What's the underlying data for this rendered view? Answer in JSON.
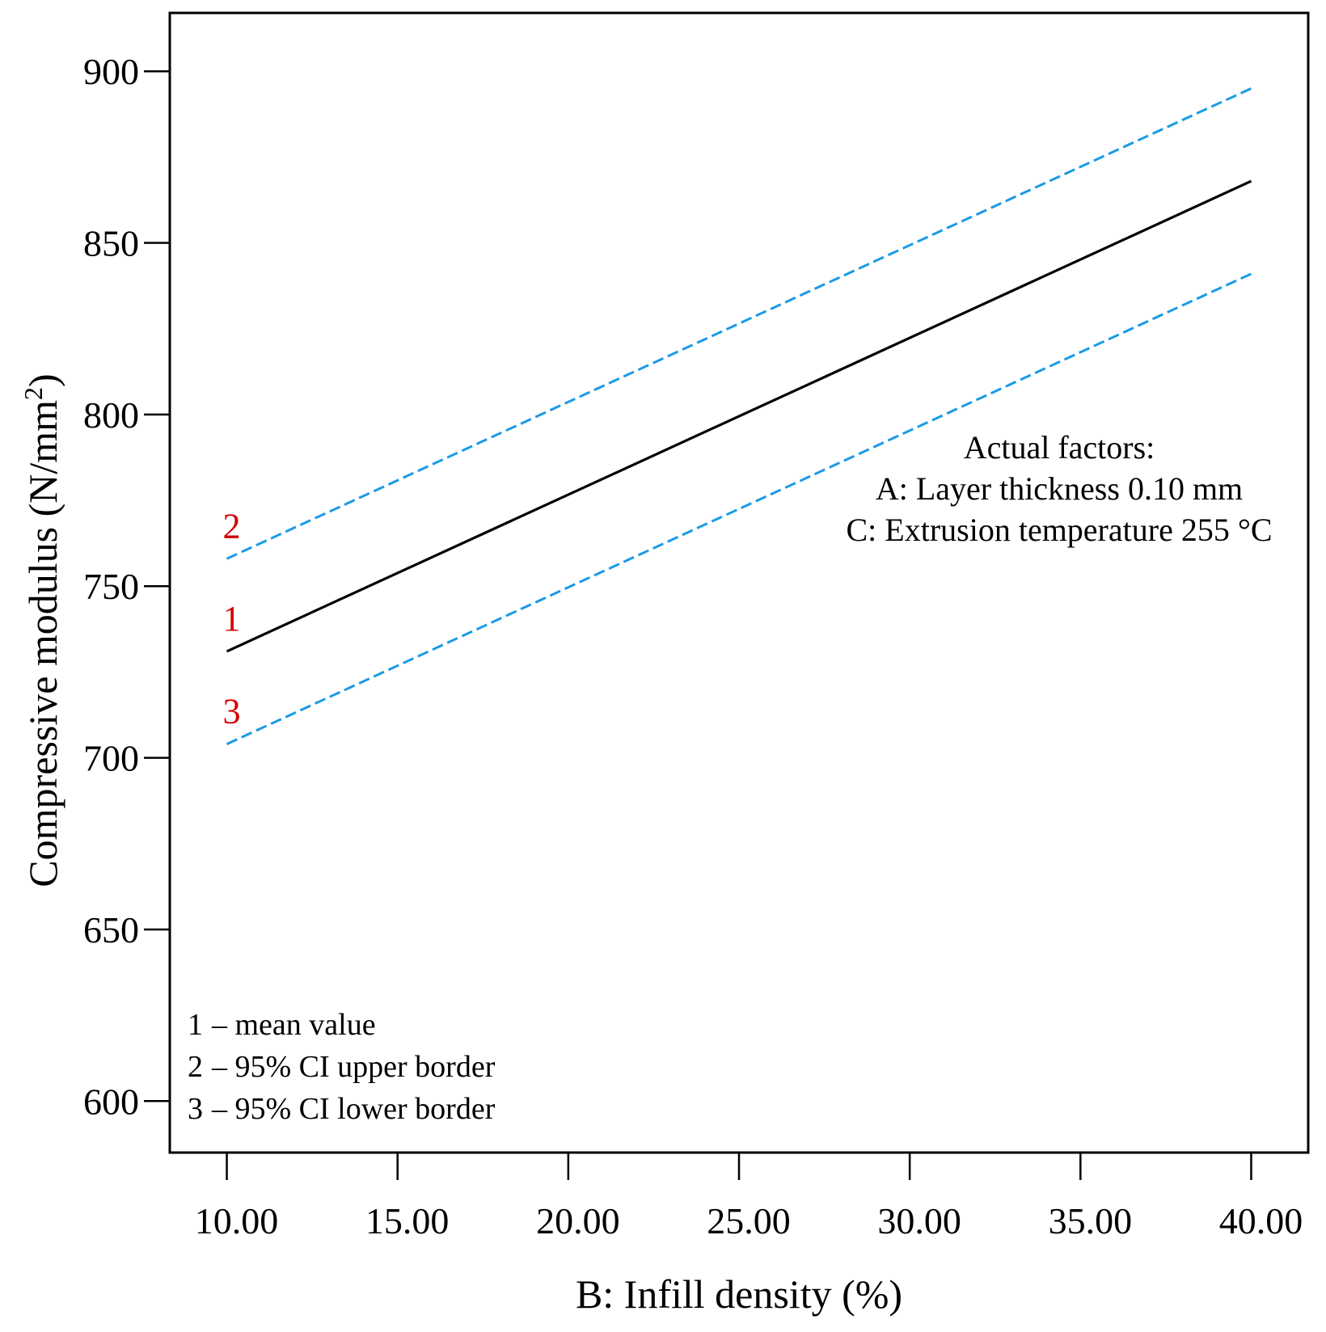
{
  "chart_data": {
    "type": "line",
    "title": "",
    "xlabel": "B: Infill density (%)",
    "ylabel": "Compressive modulus (N/mm",
    "ylabel_sup": "2",
    "ylabel_end": ")",
    "xlim": [
      8.33,
      41.67
    ],
    "ylim": [
      585,
      917
    ],
    "x_ticks": [
      10,
      15,
      20,
      25,
      30,
      35,
      40
    ],
    "x_tick_labels": [
      "10.00",
      "15.00",
      "20.00",
      "25.00",
      "30.00",
      "35.00",
      "40.00"
    ],
    "y_ticks": [
      600,
      650,
      700,
      750,
      800,
      850,
      900
    ],
    "y_tick_labels": [
      "600",
      "650",
      "700",
      "750",
      "800",
      "850",
      "900"
    ],
    "series": [
      {
        "name": "mean value",
        "tag": "1",
        "color": "#000000",
        "style": "solid",
        "x": [
          10,
          40
        ],
        "values": [
          731,
          868
        ]
      },
      {
        "name": "95% CI upper border",
        "tag": "2",
        "color": "#1a9be6",
        "style": "dashed",
        "x": [
          10,
          40
        ],
        "values": [
          758,
          895
        ]
      },
      {
        "name": "95% CI lower border",
        "tag": "3",
        "color": "#1a9be6",
        "style": "dashed",
        "x": [
          10,
          40
        ],
        "values": [
          704,
          841
        ]
      }
    ],
    "annotation": {
      "lines": [
        "Actual factors:",
        "A: Layer thickness 0.10 mm",
        "C: Extrusion temperature 255 °C"
      ]
    },
    "legend": {
      "placement": "bottom-left",
      "tag_color": "#d40000",
      "entries": [
        {
          "tag": "1",
          "text": "– mean value"
        },
        {
          "tag": "2",
          "text": "– 95% CI upper border"
        },
        {
          "tag": "3",
          "text": "– 95% CI lower border"
        }
      ]
    }
  }
}
